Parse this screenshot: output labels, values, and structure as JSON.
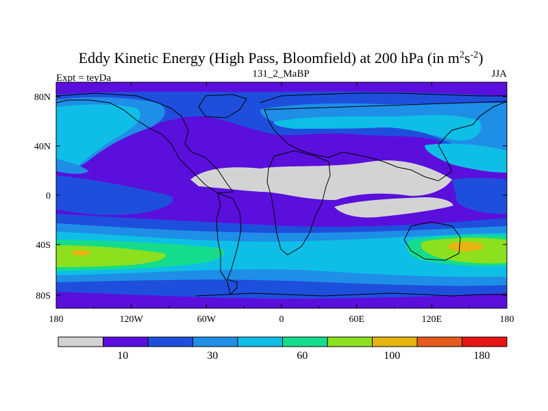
{
  "title": {
    "main": "Eddy Kinetic Energy (High Pass, Bloomfield) at 200 hPa (in m",
    "exp1": "2",
    "mid": "s",
    "exp2": "-2",
    "close": ")"
  },
  "subtitle_left": "Expt = teyDa",
  "subtitle_center": "131_2_MaBP",
  "subtitle_right": "JJA",
  "x_ticks": [
    "180",
    "120W",
    "60W",
    "0",
    "60E",
    "120E",
    "180"
  ],
  "y_ticks": [
    "80N",
    "40N",
    "0",
    "40S",
    "80S"
  ],
  "colorbar": {
    "colors": [
      "#d3d3d3",
      "#5a0fdc",
      "#1e4fdc",
      "#1e8ee6",
      "#0fbee6",
      "#14dc8c",
      "#8ce01e",
      "#e6b40f",
      "#e65a1e",
      "#e61414"
    ],
    "labels": [
      "10",
      "30",
      "60",
      "100",
      "180"
    ]
  },
  "colors": {
    "land_outline": "#000000",
    "background_band": "#5a0fdc"
  }
}
